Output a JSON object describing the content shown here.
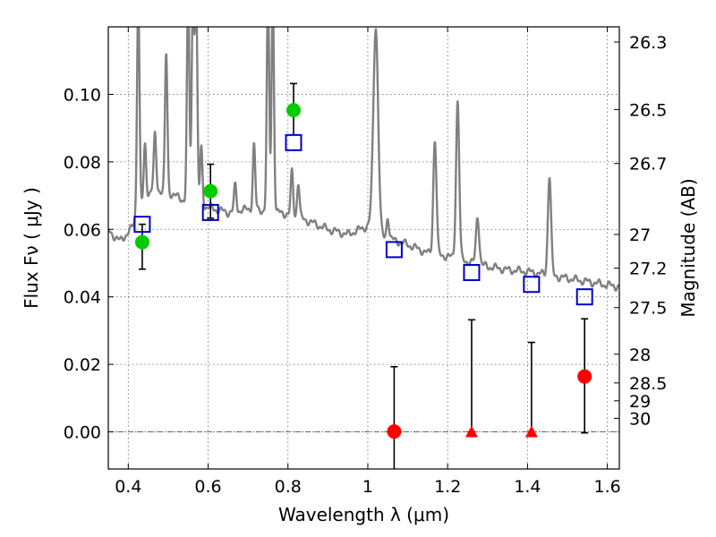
{
  "chart_data": {
    "type": "scatter",
    "title": "",
    "xlabel": "Wavelength  λ (μm)",
    "ylabel": "Flux  Fν  ( μJy )",
    "ylabel_right": "Magnitude (AB)",
    "xlim": [
      0.35,
      1.63
    ],
    "ylim": [
      -0.011,
      0.12
    ],
    "grid": true,
    "x_ticks": [
      0.4,
      0.6,
      0.8,
      1.0,
      1.2,
      1.4,
      1.6
    ],
    "x_tick_labels": [
      "0.4",
      "0.6",
      "0.8",
      "1",
      "1.2",
      "1.4",
      "1.6"
    ],
    "y_ticks": [
      0.0,
      0.02,
      0.04,
      0.06,
      0.08,
      0.1
    ],
    "y_tick_labels": [
      "0.00",
      "0.02",
      "0.04",
      "0.06",
      "0.08",
      "0.10"
    ],
    "right_ticks": [
      {
        "flux": 0.1155,
        "label": "26.3"
      },
      {
        "flux": 0.0955,
        "label": "26.5"
      },
      {
        "flux": 0.0795,
        "label": "26.7"
      },
      {
        "flux": 0.0585,
        "label": "27"
      },
      {
        "flux": 0.0485,
        "label": "27.2"
      },
      {
        "flux": 0.0368,
        "label": "27.5"
      },
      {
        "flux": 0.023,
        "label": "28"
      },
      {
        "flux": 0.0145,
        "label": "28.5"
      },
      {
        "flux": 0.0092,
        "label": "29"
      },
      {
        "flux": 0.004,
        "label": "30"
      }
    ],
    "series": [
      {
        "marker": "circle",
        "color": "#00cc00",
        "points": [
          {
            "x": 0.435,
            "y": 0.0562,
            "err_lo": 0.0482,
            "err_hi": 0.0615
          },
          {
            "x": 0.606,
            "y": 0.0713,
            "err_lo": 0.0633,
            "err_hi": 0.0793
          },
          {
            "x": 0.814,
            "y": 0.0953,
            "err_lo": 0.088,
            "err_hi": 0.1032
          }
        ]
      },
      {
        "marker": "circle",
        "color": "#ff0000",
        "points": [
          {
            "x": 1.066,
            "y": 0.0001,
            "err_lo": -0.011,
            "err_hi": 0.0193
          },
          {
            "x": 1.543,
            "y": 0.0164,
            "err_lo": -0.0003,
            "err_hi": 0.0335
          }
        ]
      },
      {
        "marker": "triangle",
        "color": "#ff0000",
        "points": [
          {
            "x": 1.26,
            "y": 0.0,
            "err_lo": 0.0,
            "err_hi": 0.0332
          },
          {
            "x": 1.41,
            "y": 0.0,
            "err_lo": 0.0,
            "err_hi": 0.0265
          }
        ]
      },
      {
        "marker": "square",
        "color": "#0000cc",
        "points": [
          {
            "x": 0.435,
            "y": 0.0615
          },
          {
            "x": 0.606,
            "y": 0.065
          },
          {
            "x": 0.814,
            "y": 0.0857
          },
          {
            "x": 1.066,
            "y": 0.054
          },
          {
            "x": 1.26,
            "y": 0.0472
          },
          {
            "x": 1.41,
            "y": 0.0437
          },
          {
            "x": 1.543,
            "y": 0.04
          }
        ]
      }
    ],
    "spectrum": {
      "color": "#808080",
      "continuum": [
        [
          0.35,
          0.0595
        ],
        [
          0.38,
          0.0565
        ],
        [
          0.41,
          0.0605
        ],
        [
          0.43,
          0.067
        ],
        [
          0.46,
          0.072
        ],
        [
          0.5,
          0.071
        ],
        [
          0.55,
          0.068
        ],
        [
          0.6,
          0.0665
        ],
        [
          0.65,
          0.065
        ],
        [
          0.7,
          0.066
        ],
        [
          0.75,
          0.0655
        ],
        [
          0.8,
          0.0645
        ],
        [
          0.85,
          0.0625
        ],
        [
          0.9,
          0.06
        ],
        [
          0.95,
          0.0585
        ],
        [
          1.0,
          0.061
        ],
        [
          1.01,
          0.062
        ],
        [
          1.03,
          0.058
        ],
        [
          1.06,
          0.057
        ],
        [
          1.1,
          0.0555
        ],
        [
          1.15,
          0.053
        ],
        [
          1.2,
          0.052
        ],
        [
          1.25,
          0.0505
        ],
        [
          1.3,
          0.049
        ],
        [
          1.35,
          0.048
        ],
        [
          1.4,
          0.0475
        ],
        [
          1.45,
          0.0465
        ],
        [
          1.5,
          0.0455
        ],
        [
          1.55,
          0.0445
        ],
        [
          1.6,
          0.0435
        ],
        [
          1.63,
          0.043
        ]
      ],
      "lines": [
        {
          "x": 0.425,
          "peak": 0.13,
          "w": 0.003
        },
        {
          "x": 0.442,
          "peak": 0.085,
          "w": 0.003
        },
        {
          "x": 0.467,
          "peak": 0.088,
          "w": 0.003
        },
        {
          "x": 0.495,
          "peak": 0.112,
          "w": 0.003
        },
        {
          "x": 0.55,
          "peak": 0.13,
          "w": 0.003
        },
        {
          "x": 0.562,
          "peak": 0.13,
          "w": 0.003
        },
        {
          "x": 0.57,
          "peak": 0.13,
          "w": 0.003
        },
        {
          "x": 0.583,
          "peak": 0.084,
          "w": 0.003
        },
        {
          "x": 0.668,
          "peak": 0.073,
          "w": 0.003
        },
        {
          "x": 0.715,
          "peak": 0.085,
          "w": 0.003
        },
        {
          "x": 0.75,
          "peak": 0.13,
          "w": 0.003
        },
        {
          "x": 0.762,
          "peak": 0.13,
          "w": 0.003
        },
        {
          "x": 0.81,
          "peak": 0.077,
          "w": 0.003
        },
        {
          "x": 0.826,
          "peak": 0.074,
          "w": 0.003
        },
        {
          "x": 1.02,
          "peak": 0.12,
          "w": 0.006
        },
        {
          "x": 1.05,
          "peak": 0.064,
          "w": 0.003
        },
        {
          "x": 1.168,
          "peak": 0.0865,
          "w": 0.004
        },
        {
          "x": 1.225,
          "peak": 0.098,
          "w": 0.004
        },
        {
          "x": 1.275,
          "peak": 0.064,
          "w": 0.004
        },
        {
          "x": 1.455,
          "peak": 0.076,
          "w": 0.004
        }
      ]
    }
  }
}
